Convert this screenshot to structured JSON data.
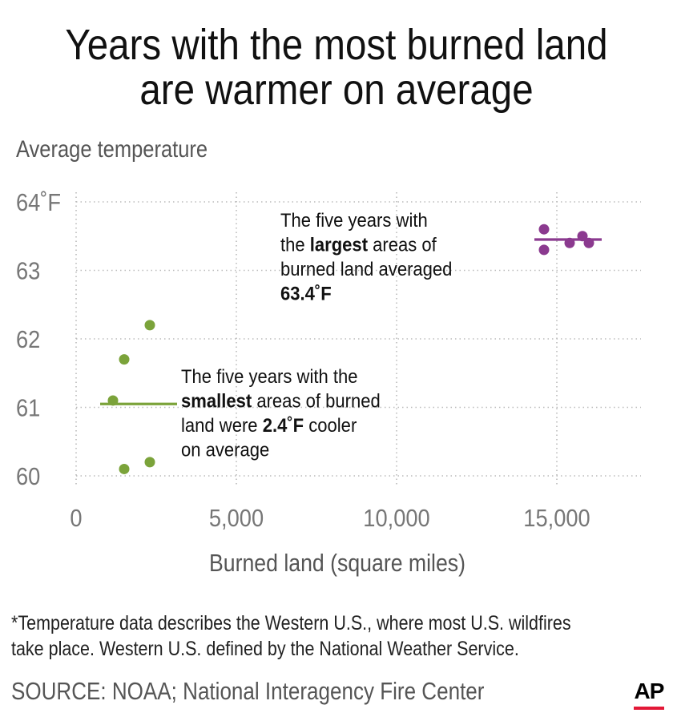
{
  "title_line1": "Years with the most burned land",
  "title_line2": "are warmer on average",
  "footnote": "*Temperature data describes the Western U.S., where most U.S. wildfires take place. Western U.S. defined by the National Weather Service.",
  "source": "SOURCE: NOAA; National Interagency Fire Center",
  "logo": "AP",
  "chart_data": {
    "type": "scatter",
    "title": "Years with the most burned land are warmer on average",
    "ylabel": "Average temperature",
    "xlabel": "Burned land (square miles)",
    "xlim": [
      0,
      18000
    ],
    "ylim": [
      59.7,
      64.1
    ],
    "x_ticks": [
      0,
      5000,
      10000,
      15000
    ],
    "x_tick_labels": [
      "0",
      "5,000",
      "10,000",
      "15,000"
    ],
    "y_ticks": [
      60,
      61,
      62,
      63,
      64
    ],
    "y_tick_labels": [
      "60",
      "61",
      "62",
      "63",
      "64˚F"
    ],
    "grid": true,
    "series": [
      {
        "color": "#7ba33a",
        "points": [
          {
            "x": 1150,
            "y": 61.1
          },
          {
            "x": 1500,
            "y": 61.7
          },
          {
            "x": 1500,
            "y": 60.1
          },
          {
            "x": 2300,
            "y": 60.2
          },
          {
            "x": 2300,
            "y": 62.2
          }
        ],
        "average": 61.05,
        "average_range": [
          750,
          3150
        ]
      },
      {
        "color": "#8b3a8f",
        "points": [
          {
            "x": 14600,
            "y": 63.6
          },
          {
            "x": 14600,
            "y": 63.3
          },
          {
            "x": 15400,
            "y": 63.4
          },
          {
            "x": 15800,
            "y": 63.5
          },
          {
            "x": 16000,
            "y": 63.4
          }
        ],
        "average": 63.45,
        "average_range": [
          14300,
          16400
        ]
      }
    ],
    "annotations": [
      {
        "id": "largest",
        "lines": [
          [
            {
              "t": "The five years with",
              "b": false
            }
          ],
          [
            {
              "t": "the ",
              "b": false
            },
            {
              "t": "largest",
              "b": true
            },
            {
              "t": " areas of",
              "b": false
            }
          ],
          [
            {
              "t": "burned land averaged",
              "b": false
            }
          ],
          [
            {
              "t": "63.4˚F",
              "b": true
            }
          ]
        ]
      },
      {
        "id": "smallest",
        "lines": [
          [
            {
              "t": "The five years with the",
              "b": false
            }
          ],
          [
            {
              "t": "smallest",
              "b": true
            },
            {
              "t": " areas of burned",
              "b": false
            }
          ],
          [
            {
              "t": "land were ",
              "b": false
            },
            {
              "t": "2.4˚F",
              "b": true
            },
            {
              "t": " cooler",
              "b": false
            }
          ],
          [
            {
              "t": "on average",
              "b": false
            }
          ]
        ]
      }
    ]
  }
}
